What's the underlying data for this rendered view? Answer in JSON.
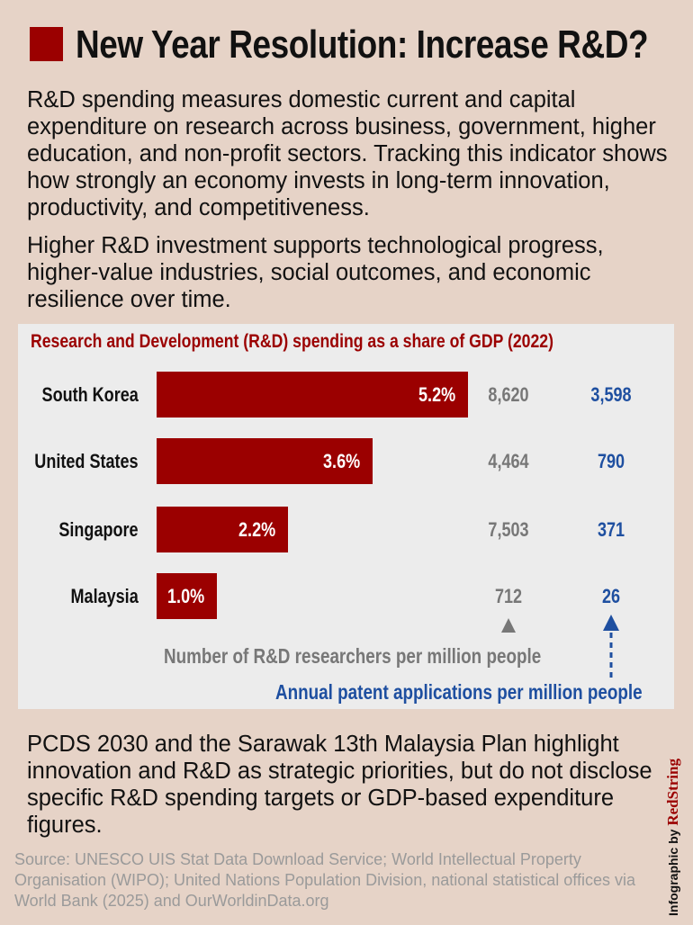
{
  "header": {
    "title": "New Year Resolution: Increase R&D?"
  },
  "intro": {
    "p1": "R&D spending measures domestic current and capital expenditure on research across business, government, higher education, and non-profit sectors. Tracking this indicator shows how strongly an economy invests in long-term innovation, productivity, and competitiveness.",
    "p2": "Higher R&D investment supports technological progress, higher-value industries, social outcomes, and economic resilience over time."
  },
  "chart_data": {
    "type": "bar",
    "orientation": "horizontal",
    "title": "Research and Development (R&D) spending as a share of GDP (2022)",
    "categories": [
      "South Korea",
      "United States",
      "Singapore",
      "Malaysia"
    ],
    "values": [
      5.2,
      3.6,
      2.2,
      1.0
    ],
    "value_labels": [
      "5.2%",
      "3.6%",
      "2.2%",
      "1.0%"
    ],
    "xlim": [
      0,
      5.2
    ],
    "bar_color": "#9b0000",
    "researchers": {
      "label": "Number of R&D researchers per million people",
      "values": [
        "8,620",
        "4,464",
        "7,503",
        "712"
      ],
      "color": "#777777"
    },
    "patents": {
      "label": "Annual patent applications per million people",
      "values": [
        "3,598",
        "790",
        "371",
        "26"
      ],
      "color": "#1e4fa0"
    }
  },
  "outro": {
    "p3": "PCDS 2030 and the Sarawak 13th Malaysia Plan highlight innovation and R&D as strategic priorities, but do not disclose specific R&D spending targets or GDP-based expenditure figures."
  },
  "footer": {
    "source": "Source: UNESCO UIS Stat Data Download Service; World Intellectual Property Organisation (WIPO); United Nations Population Division, national statistical offices via World Bank (2025) and OurWorldinData.org",
    "credit_prefix": "Infographic by",
    "credit_brand": "RedString"
  }
}
